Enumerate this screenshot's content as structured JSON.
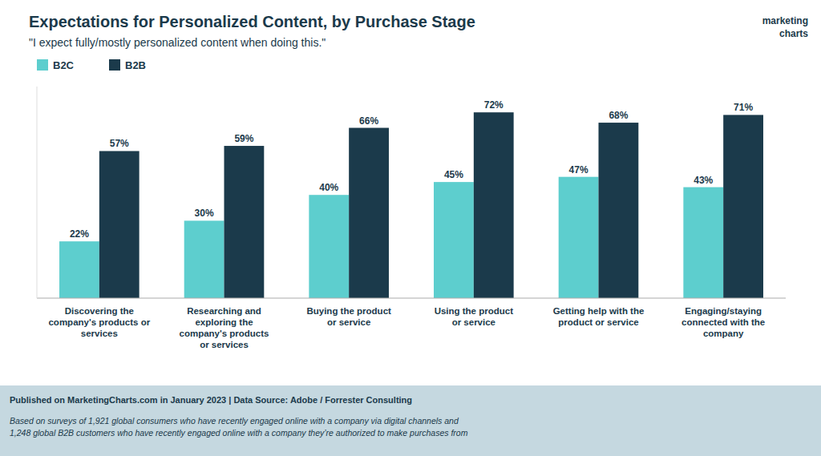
{
  "chart_data": {
    "type": "bar",
    "title": "Expectations for Personalized Content, by Purchase Stage",
    "subtitle": "\"I expect fully/mostly personalized content when doing this.\"",
    "categories": [
      "Discovering the\ncompany's products or\nservices",
      "Researching and\nexploring the\ncompany's products\nor services",
      "Buying the product\nor service",
      "Using the product\nor service",
      "Getting help with the\nproduct or service",
      "Engaging/staying\nconnected with the\ncompany"
    ],
    "series": [
      {
        "name": "B2C",
        "color": "#5DCECE",
        "values": [
          22,
          30,
          40,
          45,
          47,
          43
        ],
        "value_labels": [
          "22%",
          "30%",
          "40%",
          "45%",
          "47%",
          "43%"
        ]
      },
      {
        "name": "B2B",
        "color": "#1B3A4B",
        "values": [
          57,
          59,
          66,
          72,
          68,
          71
        ],
        "value_labels": [
          "57%",
          "59%",
          "66%",
          "72%",
          "68%",
          "71%"
        ]
      }
    ],
    "ylim": [
      0,
      82
    ],
    "grid": false,
    "legend": "top-left",
    "data_labels": true,
    "tick_labels": "x",
    "annotations": [
      "Published on MarketingCharts.com in January 2023 | Data Source: Adobe / Forrester Consulting",
      "Based on surveys of 1,921 global consumers who have recently engaged online with a company via digital channels and\n1,248 global B2B customers who have recently engaged online with a company they’re authorized to make purchases from",
      "marketing",
      "charts"
    ]
  }
}
